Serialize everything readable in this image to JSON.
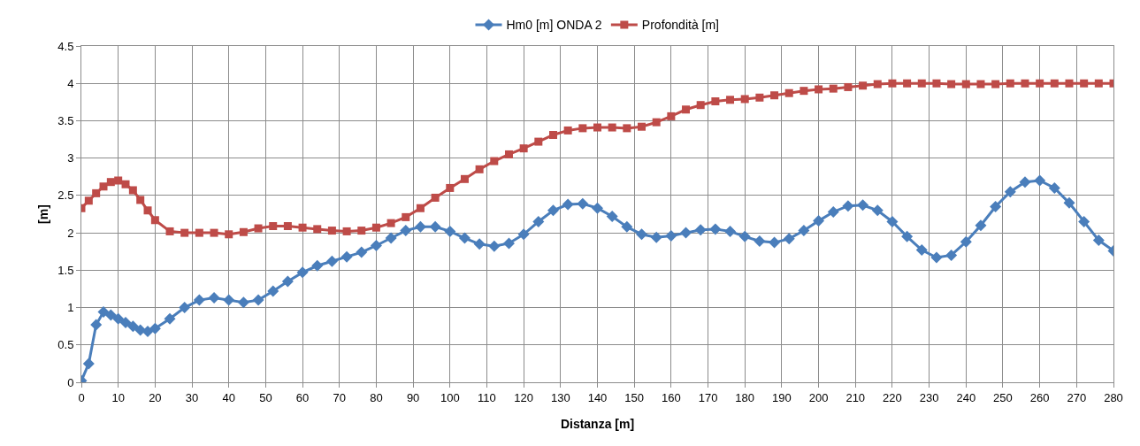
{
  "chart_data": {
    "type": "line",
    "xlabel": "Distanza [m]",
    "ylabel": "[m]",
    "x": [
      0,
      2,
      4,
      6,
      8,
      10,
      12,
      14,
      16,
      18,
      20,
      24,
      28,
      32,
      36,
      40,
      44,
      48,
      52,
      56,
      60,
      64,
      68,
      72,
      76,
      80,
      84,
      88,
      92,
      96,
      100,
      104,
      108,
      112,
      116,
      120,
      124,
      128,
      132,
      136,
      140,
      144,
      148,
      152,
      156,
      160,
      164,
      168,
      172,
      176,
      180,
      184,
      188,
      192,
      196,
      200,
      204,
      208,
      212,
      216,
      220,
      224,
      228,
      232,
      236,
      240,
      244,
      248,
      252,
      256,
      260,
      264,
      268,
      272,
      276,
      280
    ],
    "series": [
      {
        "name": "Hm0 [m] ONDA 2",
        "color": "#4a7ebb",
        "marker": "diamond",
        "values": [
          0.02,
          0.25,
          0.77,
          0.94,
          0.9,
          0.85,
          0.8,
          0.75,
          0.7,
          0.68,
          0.72,
          0.85,
          1.0,
          1.1,
          1.13,
          1.1,
          1.07,
          1.1,
          1.22,
          1.35,
          1.47,
          1.56,
          1.62,
          1.68,
          1.74,
          1.83,
          1.93,
          2.03,
          2.08,
          2.08,
          2.02,
          1.93,
          1.85,
          1.82,
          1.86,
          1.98,
          2.15,
          2.3,
          2.38,
          2.39,
          2.33,
          2.22,
          2.08,
          1.98,
          1.94,
          1.96,
          2.0,
          2.04,
          2.05,
          2.02,
          1.95,
          1.89,
          1.87,
          1.92,
          2.03,
          2.16,
          2.28,
          2.36,
          2.37,
          2.3,
          2.15,
          1.95,
          1.77,
          1.67,
          1.7,
          1.88,
          2.1,
          2.35,
          2.55,
          2.68,
          2.7,
          2.6,
          2.4,
          2.15,
          1.9,
          1.76
        ]
      },
      {
        "name": "Profondità [m]",
        "color": "#be4b48",
        "marker": "square",
        "values": [
          2.33,
          2.43,
          2.53,
          2.62,
          2.68,
          2.7,
          2.65,
          2.57,
          2.44,
          2.3,
          2.17,
          2.02,
          2.0,
          2.0,
          2.0,
          1.98,
          2.01,
          2.06,
          2.09,
          2.09,
          2.07,
          2.05,
          2.03,
          2.02,
          2.03,
          2.07,
          2.13,
          2.21,
          2.33,
          2.47,
          2.6,
          2.72,
          2.85,
          2.96,
          3.05,
          3.13,
          3.22,
          3.31,
          3.37,
          3.4,
          3.41,
          3.41,
          3.4,
          3.42,
          3.48,
          3.56,
          3.65,
          3.71,
          3.76,
          3.78,
          3.79,
          3.81,
          3.84,
          3.87,
          3.9,
          3.92,
          3.93,
          3.95,
          3.97,
          3.99,
          4.0,
          4.0,
          4.0,
          4.0,
          3.99,
          3.99,
          3.99,
          3.99,
          4.0,
          4.0,
          4.0,
          4.0,
          4.0,
          4.0,
          4.0,
          4.0
        ]
      }
    ],
    "xlim": [
      0,
      280
    ],
    "xticks": [
      0,
      10,
      20,
      30,
      40,
      50,
      60,
      70,
      80,
      90,
      100,
      110,
      120,
      130,
      140,
      150,
      160,
      170,
      180,
      190,
      200,
      210,
      220,
      230,
      240,
      250,
      260,
      270,
      280
    ],
    "ylim": [
      0,
      4.5
    ],
    "yticks": [
      0,
      0.5,
      1,
      1.5,
      2,
      2.5,
      3,
      3.5,
      4,
      4.5
    ],
    "grid": true,
    "legend": "top",
    "line_style": "solid"
  }
}
